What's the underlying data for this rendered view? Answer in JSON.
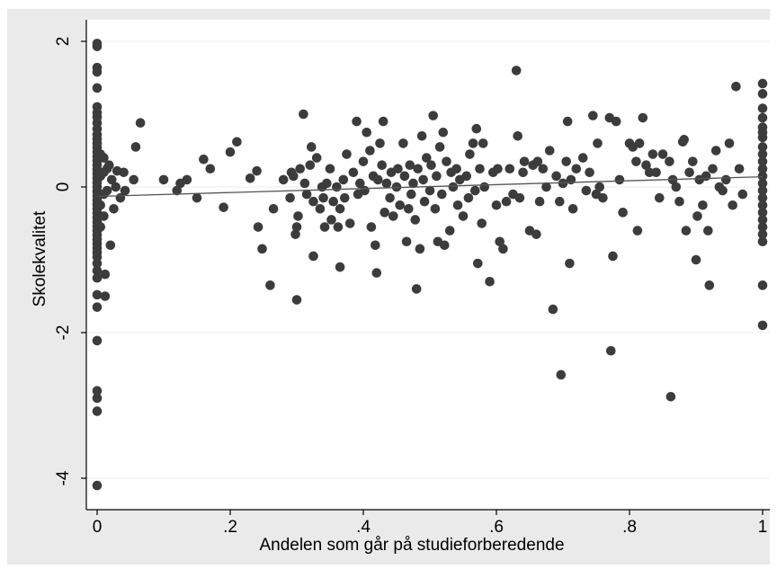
{
  "chart_data": {
    "type": "scatter",
    "title": "",
    "xlabel": "Andelen som går på studieforberedende",
    "ylabel": "Skolekvalitet",
    "xlim": [
      -0.015,
      1.015
    ],
    "ylim": [
      -4.2,
      2.1
    ],
    "x_ticks": [
      0,
      0.2,
      0.4,
      0.6,
      0.8,
      1
    ],
    "x_tick_labels": [
      "0",
      ".2",
      ".4",
      ".6",
      ".8",
      "1"
    ],
    "y_ticks": [
      2,
      0,
      -2,
      -4
    ],
    "y_tick_labels": [
      "2",
      "0",
      "-2",
      "-4"
    ],
    "grid": true,
    "legend": "none",
    "colors": {
      "plot_bg": "#eaeaea",
      "panel_bg": "#ffffff",
      "points": "#3c3c3c",
      "fit_line": "#555555",
      "grid": "#ffffff"
    },
    "fit_line": {
      "x": [
        0,
        1
      ],
      "y": [
        -0.13,
        0.14
      ]
    },
    "series": [
      {
        "points": [
          [
            0,
            1.97
          ],
          [
            0,
            1.93
          ],
          [
            0,
            1.64
          ],
          [
            0,
            1.58
          ],
          [
            0,
            1.36
          ],
          [
            0,
            1.1
          ],
          [
            0,
            1.02
          ],
          [
            0,
            0.96
          ],
          [
            0,
            0.88
          ],
          [
            0,
            0.8
          ],
          [
            0,
            0.72
          ],
          [
            0,
            0.66
          ],
          [
            0,
            0.6
          ],
          [
            0,
            0.54
          ],
          [
            0,
            0.48
          ],
          [
            0,
            0.42
          ],
          [
            0,
            0.36
          ],
          [
            0,
            0.3
          ],
          [
            0,
            0.24
          ],
          [
            0,
            0.18
          ],
          [
            0,
            0.12
          ],
          [
            0,
            0.06
          ],
          [
            0,
            0.0
          ],
          [
            0,
            -0.06
          ],
          [
            0,
            -0.12
          ],
          [
            0,
            -0.18
          ],
          [
            0,
            -0.24
          ],
          [
            0,
            -0.3
          ],
          [
            0,
            -0.36
          ],
          [
            0,
            -0.42
          ],
          [
            0,
            -0.48
          ],
          [
            0,
            -0.54
          ],
          [
            0,
            -0.6
          ],
          [
            0,
            -0.66
          ],
          [
            0,
            -0.72
          ],
          [
            0,
            -0.78
          ],
          [
            0,
            -0.84
          ],
          [
            0,
            -0.9
          ],
          [
            0,
            -0.96
          ],
          [
            0,
            -1.05
          ],
          [
            0,
            -1.15
          ],
          [
            0,
            -1.25
          ],
          [
            0,
            -1.48
          ],
          [
            0,
            -1.65
          ],
          [
            0,
            -2.11
          ],
          [
            0,
            -2.8
          ],
          [
            0,
            -2.9
          ],
          [
            0,
            -3.08
          ],
          [
            0,
            -4.1
          ],
          [
            0.005,
            0.45
          ],
          [
            0.005,
            0.15
          ],
          [
            0.005,
            -0.25
          ],
          [
            0.005,
            -0.55
          ],
          [
            0.01,
            0.4
          ],
          [
            0.01,
            0.2
          ],
          [
            0.01,
            -0.1
          ],
          [
            0.01,
            -0.4
          ],
          [
            0.012,
            -1.2
          ],
          [
            0.012,
            -1.5
          ],
          [
            0.015,
            0.25
          ],
          [
            0.015,
            -0.05
          ],
          [
            0.018,
            0.3
          ],
          [
            0.02,
            -0.8
          ],
          [
            0.022,
            0.1
          ],
          [
            0.025,
            -0.3
          ],
          [
            0.028,
            0.0
          ],
          [
            0.03,
            0.22
          ],
          [
            0.035,
            -0.15
          ],
          [
            0.04,
            0.2
          ],
          [
            0.042,
            -0.05
          ],
          [
            0.055,
            0.1
          ],
          [
            0.058,
            0.55
          ],
          [
            0.065,
            0.88
          ],
          [
            0.1,
            0.1
          ],
          [
            0.12,
            -0.05
          ],
          [
            0.125,
            0.05
          ],
          [
            0.135,
            0.1
          ],
          [
            0.15,
            -0.15
          ],
          [
            0.16,
            0.38
          ],
          [
            0.17,
            0.25
          ],
          [
            0.19,
            -0.28
          ],
          [
            0.2,
            0.48
          ],
          [
            0.21,
            0.62
          ],
          [
            0.23,
            0.12
          ],
          [
            0.24,
            0.22
          ],
          [
            0.242,
            -0.55
          ],
          [
            0.248,
            -0.85
          ],
          [
            0.26,
            -1.35
          ],
          [
            0.265,
            -0.3
          ],
          [
            0.28,
            0.1
          ],
          [
            0.29,
            -0.15
          ],
          [
            0.292,
            0.2
          ],
          [
            0.295,
            0.15
          ],
          [
            0.298,
            -0.65
          ],
          [
            0.3,
            -0.55
          ],
          [
            0.3,
            -1.55
          ],
          [
            0.302,
            -0.4
          ],
          [
            0.305,
            0.25
          ],
          [
            0.31,
            1.0
          ],
          [
            0.312,
            0.05
          ],
          [
            0.315,
            -0.1
          ],
          [
            0.32,
            0.3
          ],
          [
            0.322,
            0.55
          ],
          [
            0.325,
            -0.2
          ],
          [
            0.325,
            -0.95
          ],
          [
            0.33,
            0.4
          ],
          [
            0.335,
            -0.3
          ],
          [
            0.338,
            0.0
          ],
          [
            0.34,
            -0.15
          ],
          [
            0.342,
            -0.55
          ],
          [
            0.345,
            0.05
          ],
          [
            0.35,
            0.25
          ],
          [
            0.352,
            -0.45
          ],
          [
            0.355,
            -0.2
          ],
          [
            0.36,
            0.0
          ],
          [
            0.362,
            -0.55
          ],
          [
            0.365,
            -0.3
          ],
          [
            0.365,
            -1.1
          ],
          [
            0.37,
            0.1
          ],
          [
            0.372,
            -0.15
          ],
          [
            0.375,
            0.45
          ],
          [
            0.38,
            -0.5
          ],
          [
            0.385,
            0.2
          ],
          [
            0.39,
            0.9
          ],
          [
            0.392,
            -0.1
          ],
          [
            0.395,
            0.05
          ],
          [
            0.4,
            0.35
          ],
          [
            0.402,
            -0.05
          ],
          [
            0.405,
            0.75
          ],
          [
            0.41,
            0.5
          ],
          [
            0.412,
            -0.55
          ],
          [
            0.415,
            0.15
          ],
          [
            0.418,
            -0.8
          ],
          [
            0.42,
            -1.18
          ],
          [
            0.422,
            0.1
          ],
          [
            0.425,
            0.6
          ],
          [
            0.428,
            0.3
          ],
          [
            0.43,
            0.9
          ],
          [
            0.432,
            -0.35
          ],
          [
            0.435,
            0.05
          ],
          [
            0.44,
            -0.15
          ],
          [
            0.442,
            0.2
          ],
          [
            0.445,
            -0.4
          ],
          [
            0.45,
            0.0
          ],
          [
            0.452,
            0.25
          ],
          [
            0.455,
            -0.25
          ],
          [
            0.46,
            0.6
          ],
          [
            0.462,
            0.15
          ],
          [
            0.465,
            -0.75
          ],
          [
            0.468,
            -0.3
          ],
          [
            0.47,
            0.3
          ],
          [
            0.472,
            -0.1
          ],
          [
            0.475,
            0.05
          ],
          [
            0.478,
            -0.45
          ],
          [
            0.48,
            -1.4
          ],
          [
            0.482,
            0.25
          ],
          [
            0.485,
            -0.85
          ],
          [
            0.488,
            0.7
          ],
          [
            0.49,
            0.1
          ],
          [
            0.492,
            -0.2
          ],
          [
            0.495,
            0.4
          ],
          [
            0.5,
            -0.05
          ],
          [
            0.502,
            0.3
          ],
          [
            0.505,
            0.98
          ],
          [
            0.508,
            -0.3
          ],
          [
            0.51,
            0.15
          ],
          [
            0.512,
            -0.75
          ],
          [
            0.515,
            0.55
          ],
          [
            0.518,
            -0.1
          ],
          [
            0.52,
            0.75
          ],
          [
            0.522,
            -0.8
          ],
          [
            0.525,
            0.35
          ],
          [
            0.53,
            -0.6
          ],
          [
            0.532,
            0.2
          ],
          [
            0.535,
            0.0
          ],
          [
            0.54,
            0.25
          ],
          [
            0.542,
            -0.25
          ],
          [
            0.545,
            0.1
          ],
          [
            0.55,
            -0.4
          ],
          [
            0.555,
            0.15
          ],
          [
            0.558,
            -0.15
          ],
          [
            0.56,
            0.45
          ],
          [
            0.565,
            0.6
          ],
          [
            0.568,
            -0.05
          ],
          [
            0.57,
            0.8
          ],
          [
            0.572,
            -1.05
          ],
          [
            0.575,
            0.25
          ],
          [
            0.578,
            -0.5
          ],
          [
            0.58,
            0.6
          ],
          [
            0.582,
            0.0
          ],
          [
            0.59,
            -1.3
          ],
          [
            0.595,
            0.2
          ],
          [
            0.6,
            -0.25
          ],
          [
            0.602,
            0.25
          ],
          [
            0.605,
            -0.75
          ],
          [
            0.61,
            -0.85
          ],
          [
            0.615,
            -0.2
          ],
          [
            0.62,
            0.25
          ],
          [
            0.625,
            -0.1
          ],
          [
            0.63,
            1.6
          ],
          [
            0.632,
            0.7
          ],
          [
            0.635,
            -0.15
          ],
          [
            0.64,
            0.2
          ],
          [
            0.642,
            0.35
          ],
          [
            0.65,
            -0.6
          ],
          [
            0.655,
            0.3
          ],
          [
            0.66,
            -0.65
          ],
          [
            0.662,
            0.35
          ],
          [
            0.665,
            -0.2
          ],
          [
            0.67,
            0.25
          ],
          [
            0.675,
            0.0
          ],
          [
            0.68,
            0.5
          ],
          [
            0.685,
            -1.68
          ],
          [
            0.69,
            0.15
          ],
          [
            0.695,
            -0.2
          ],
          [
            0.697,
            -2.58
          ],
          [
            0.7,
            0.05
          ],
          [
            0.705,
            0.35
          ],
          [
            0.707,
            0.9
          ],
          [
            0.71,
            -1.05
          ],
          [
            0.712,
            0.1
          ],
          [
            0.715,
            -0.3
          ],
          [
            0.72,
            0.25
          ],
          [
            0.73,
            0.4
          ],
          [
            0.735,
            -0.05
          ],
          [
            0.74,
            0.2
          ],
          [
            0.745,
            0.98
          ],
          [
            0.75,
            -0.1
          ],
          [
            0.752,
            0.6
          ],
          [
            0.755,
            0.0
          ],
          [
            0.76,
            -0.15
          ],
          [
            0.77,
            0.95
          ],
          [
            0.772,
            -2.25
          ],
          [
            0.775,
            -0.95
          ],
          [
            0.78,
            0.9
          ],
          [
            0.785,
            0.1
          ],
          [
            0.79,
            -0.35
          ],
          [
            0.8,
            0.6
          ],
          [
            0.805,
            0.55
          ],
          [
            0.81,
            0.35
          ],
          [
            0.812,
            -0.6
          ],
          [
            0.815,
            0.6
          ],
          [
            0.82,
            0.95
          ],
          [
            0.825,
            0.3
          ],
          [
            0.83,
            0.2
          ],
          [
            0.835,
            0.45
          ],
          [
            0.84,
            0.2
          ],
          [
            0.845,
            -0.15
          ],
          [
            0.85,
            0.45
          ],
          [
            0.86,
            0.35
          ],
          [
            0.862,
            -2.88
          ],
          [
            0.865,
            0.1
          ],
          [
            0.87,
            0.0
          ],
          [
            0.875,
            -0.2
          ],
          [
            0.88,
            0.62
          ],
          [
            0.882,
            0.65
          ],
          [
            0.885,
            -0.6
          ],
          [
            0.89,
            0.2
          ],
          [
            0.895,
            0.35
          ],
          [
            0.9,
            -1.0
          ],
          [
            0.902,
            -0.4
          ],
          [
            0.905,
            0.1
          ],
          [
            0.91,
            -0.25
          ],
          [
            0.915,
            0.15
          ],
          [
            0.918,
            -0.6
          ],
          [
            0.92,
            -1.35
          ],
          [
            0.925,
            0.25
          ],
          [
            0.93,
            0.5
          ],
          [
            0.935,
            0.0
          ],
          [
            0.94,
            -0.05
          ],
          [
            0.945,
            0.1
          ],
          [
            0.95,
            0.6
          ],
          [
            0.955,
            -0.25
          ],
          [
            0.96,
            1.38
          ],
          [
            0.965,
            0.25
          ],
          [
            0.97,
            -0.1
          ],
          [
            1,
            1.42
          ],
          [
            1,
            1.28
          ],
          [
            1,
            1.08
          ],
          [
            1,
            0.95
          ],
          [
            1,
            0.82
          ],
          [
            1,
            0.75
          ],
          [
            1,
            0.68
          ],
          [
            1,
            0.55
          ],
          [
            1,
            0.45
          ],
          [
            1,
            0.35
          ],
          [
            1,
            0.25
          ],
          [
            1,
            0.15
          ],
          [
            1,
            0.05
          ],
          [
            1,
            -0.05
          ],
          [
            1,
            -0.15
          ],
          [
            1,
            -0.25
          ],
          [
            1,
            -0.35
          ],
          [
            1,
            -0.45
          ],
          [
            1,
            -0.55
          ],
          [
            1,
            -0.65
          ],
          [
            1,
            -0.75
          ],
          [
            1,
            -1.35
          ],
          [
            1,
            -1.9
          ]
        ]
      }
    ]
  }
}
